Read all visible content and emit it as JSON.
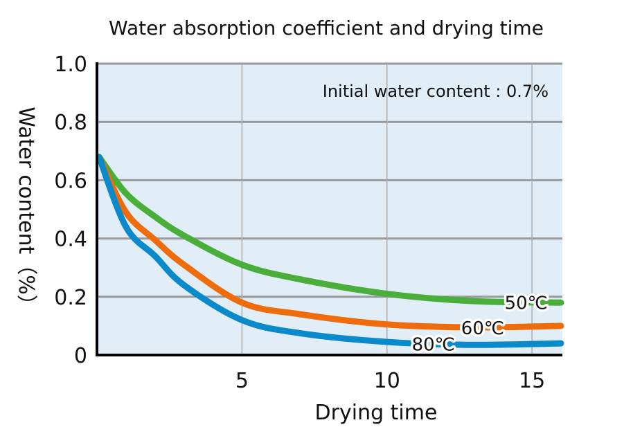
{
  "chart_data": {
    "type": "line",
    "title": "Water absorption coefficient and drying time",
    "xlabel": "Drying time",
    "ylabel": "Water content（%）",
    "annotation": "Initial water content : 0.7%",
    "xlim": [
      0,
      16
    ],
    "ylim": [
      0,
      1.0
    ],
    "xticks": [
      "5",
      "10",
      "15"
    ],
    "xtick_values": [
      5,
      10,
      15
    ],
    "yticks": [
      "0",
      "0.2",
      "0.4",
      "0.6",
      "0.8",
      "1.0"
    ],
    "ytick_values": [
      0,
      0.2,
      0.4,
      0.6,
      0.8,
      1.0
    ],
    "grid": true,
    "background": "#e1eef7",
    "x": [
      0,
      1,
      2,
      3,
      5,
      7,
      10,
      13,
      16
    ],
    "series": [
      {
        "name": "50℃",
        "color": "#4aae3a",
        "values": [
          0.68,
          0.555,
          0.475,
          0.41,
          0.31,
          0.26,
          0.21,
          0.185,
          0.18
        ],
        "label_x": 14.8
      },
      {
        "name": "60℃",
        "color": "#ee6c0c",
        "values": [
          0.68,
          0.49,
          0.395,
          0.31,
          0.18,
          0.14,
          0.105,
          0.095,
          0.1
        ],
        "label_x": 13.3
      },
      {
        "name": "80℃",
        "color": "#0a8acb",
        "values": [
          0.68,
          0.44,
          0.34,
          0.24,
          0.12,
          0.075,
          0.045,
          0.035,
          0.04
        ],
        "label_x": 11.6
      }
    ]
  }
}
